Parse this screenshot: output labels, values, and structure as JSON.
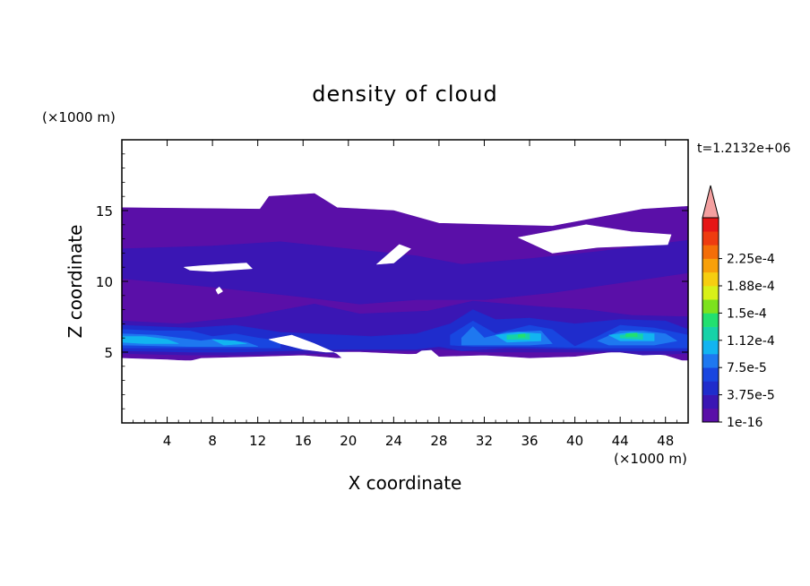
{
  "chart_data": {
    "type": "heatmap",
    "title": "density of cloud",
    "xlabel": "X coordinate",
    "ylabel": "Z coordinate",
    "x_unit": "(×1000 m)",
    "y_unit": "(×1000 m)",
    "time_label": "t=1.2132e+06",
    "xlim": [
      0,
      50
    ],
    "ylim": [
      0,
      20
    ],
    "x_ticks": [
      4,
      8,
      12,
      16,
      20,
      24,
      28,
      32,
      36,
      40,
      44,
      48
    ],
    "y_ticks": [
      5,
      10,
      15
    ],
    "colorbar": {
      "levels": [
        "1e-16",
        "3.75e-5",
        "7.5e-5",
        "1.12e-4",
        "1.5e-4",
        "1.88e-4",
        "2.25e-4"
      ],
      "colors": [
        "#5a0fa8",
        "#3a16b4",
        "#1f2ccc",
        "#1846e0",
        "#1e78f0",
        "#12b4f0",
        "#16d2a8",
        "#22e070",
        "#7ce21e",
        "#d8f018",
        "#f6ce10",
        "#f8a00a",
        "#f46e08",
        "#ee3c10",
        "#e61616"
      ],
      "extend_color": "#f4a0a0"
    },
    "regions": [
      {
        "level": 1,
        "polygon": [
          [
            0,
            15.2
          ],
          [
            12.2,
            15.1
          ],
          [
            13,
            16
          ],
          [
            17,
            16.2
          ],
          [
            19,
            15.2
          ],
          [
            24,
            15
          ],
          [
            28,
            14.1
          ],
          [
            38,
            13.9
          ],
          [
            42,
            14.5
          ],
          [
            46,
            15.1
          ],
          [
            50,
            15.3
          ],
          [
            50,
            4.3
          ],
          [
            48,
            4.8
          ],
          [
            44,
            5.1
          ],
          [
            40,
            4.7
          ],
          [
            36,
            4.6
          ],
          [
            32,
            4.8
          ],
          [
            28,
            4.7
          ],
          [
            27,
            5.4
          ],
          [
            26,
            4.9
          ],
          [
            19,
            4.6
          ],
          [
            16,
            4.8
          ],
          [
            12,
            4.7
          ],
          [
            7,
            4.6
          ],
          [
            6,
            4.4
          ],
          [
            4,
            4.5
          ],
          [
            0,
            4.6
          ]
        ]
      },
      {
        "level": 2,
        "polygon": [
          [
            0,
            12.3
          ],
          [
            8,
            12.5
          ],
          [
            14,
            12.8
          ],
          [
            20,
            12.3
          ],
          [
            26,
            11.8
          ],
          [
            30,
            11.2
          ],
          [
            36,
            11.6
          ],
          [
            42,
            12.1
          ],
          [
            50,
            12.9
          ],
          [
            50,
            10.6
          ],
          [
            44,
            9.9
          ],
          [
            38,
            9.2
          ],
          [
            32,
            8.7
          ],
          [
            26,
            8.7
          ],
          [
            21,
            8.4
          ],
          [
            16,
            8.9
          ],
          [
            8,
            9.6
          ],
          [
            0,
            10.2
          ]
        ]
      },
      {
        "level": 2,
        "polygon": [
          [
            0,
            7.2
          ],
          [
            5,
            7.0
          ],
          [
            11,
            7.5
          ],
          [
            17,
            8.4
          ],
          [
            21,
            7.7
          ],
          [
            27,
            7.9
          ],
          [
            31,
            8.6
          ],
          [
            37,
            8.2
          ],
          [
            41,
            8.0
          ],
          [
            45,
            7.6
          ],
          [
            50,
            7.5
          ],
          [
            50,
            4.9
          ],
          [
            46,
            4.8
          ],
          [
            44,
            5.0
          ],
          [
            40,
            5.0
          ],
          [
            32,
            5.0
          ],
          [
            28,
            5.2
          ],
          [
            26,
            5.1
          ],
          [
            20,
            5.1
          ],
          [
            19,
            4.9
          ],
          [
            17,
            4.9
          ],
          [
            10,
            4.8
          ],
          [
            6,
            4.8
          ],
          [
            0,
            4.9
          ]
        ]
      },
      {
        "level": 3,
        "polygon": [
          [
            0,
            6.9
          ],
          [
            6,
            6.7
          ],
          [
            10,
            6.9
          ],
          [
            14,
            6.4
          ],
          [
            22,
            6.1
          ],
          [
            26,
            6.3
          ],
          [
            29,
            7.0
          ],
          [
            31,
            8.0
          ],
          [
            33,
            7.3
          ],
          [
            36,
            7.4
          ],
          [
            40,
            7.0
          ],
          [
            44,
            7.3
          ],
          [
            48,
            7.2
          ],
          [
            50,
            6.6
          ],
          [
            50,
            5.1
          ],
          [
            44,
            5.1
          ],
          [
            40,
            5.2
          ],
          [
            34,
            5.3
          ],
          [
            30,
            5.1
          ],
          [
            28,
            5.4
          ],
          [
            26,
            5.2
          ],
          [
            20,
            5.2
          ],
          [
            10,
            5.0
          ],
          [
            6,
            5.0
          ],
          [
            0,
            5.1
          ]
        ]
      },
      {
        "level": 4,
        "polygon": [
          [
            0,
            6.6
          ],
          [
            3,
            6.5
          ],
          [
            6,
            6.5
          ],
          [
            8,
            6.1
          ],
          [
            10,
            6.3
          ],
          [
            12,
            6.0
          ],
          [
            14,
            5.8
          ],
          [
            14,
            5.3
          ],
          [
            6,
            5.3
          ],
          [
            0,
            5.3
          ]
        ]
      },
      {
        "level": 4,
        "polygon": [
          [
            29,
            6.2
          ],
          [
            31,
            7.2
          ],
          [
            33,
            6.3
          ],
          [
            36,
            6.9
          ],
          [
            38,
            6.6
          ],
          [
            40,
            5.4
          ],
          [
            42,
            6.1
          ],
          [
            44,
            6.9
          ],
          [
            47,
            6.7
          ],
          [
            50,
            6.2
          ],
          [
            50,
            5.3
          ],
          [
            42,
            5.3
          ],
          [
            36,
            5.4
          ],
          [
            31,
            5.4
          ],
          [
            29,
            5.5
          ]
        ]
      },
      {
        "level": 5,
        "polygon": [
          [
            0,
            6.3
          ],
          [
            3,
            6.2
          ],
          [
            5,
            6.0
          ],
          [
            7,
            5.8
          ],
          [
            8,
            5.9
          ],
          [
            11,
            5.7
          ],
          [
            12,
            5.4
          ],
          [
            6,
            5.4
          ],
          [
            0,
            5.5
          ]
        ]
      },
      {
        "level": 5,
        "polygon": [
          [
            30,
            6.0
          ],
          [
            31,
            6.8
          ],
          [
            32,
            6.0
          ],
          [
            34,
            6.4
          ],
          [
            37,
            6.5
          ],
          [
            38,
            5.6
          ],
          [
            36,
            5.5
          ],
          [
            30,
            5.5
          ]
        ]
      },
      {
        "level": 5,
        "polygon": [
          [
            42,
            5.8
          ],
          [
            44,
            6.5
          ],
          [
            46,
            6.5
          ],
          [
            48,
            6.3
          ],
          [
            49,
            5.8
          ],
          [
            47,
            5.5
          ],
          [
            43,
            5.5
          ]
        ]
      },
      {
        "level": 6,
        "polygon": [
          [
            0,
            6.1
          ],
          [
            2,
            6.1
          ],
          [
            4,
            5.9
          ],
          [
            5,
            5.6
          ],
          [
            2,
            5.6
          ],
          [
            0,
            5.7
          ]
        ]
      },
      {
        "level": 6,
        "polygon": [
          [
            8,
            5.9
          ],
          [
            10,
            5.8
          ],
          [
            11,
            5.6
          ],
          [
            9,
            5.5
          ]
        ]
      },
      {
        "level": 6,
        "polygon": [
          [
            33,
            6.2
          ],
          [
            35,
            6.4
          ],
          [
            37,
            6.3
          ],
          [
            37,
            5.8
          ],
          [
            34,
            5.7
          ]
        ]
      },
      {
        "level": 6,
        "polygon": [
          [
            43,
            6.2
          ],
          [
            45,
            6.4
          ],
          [
            47,
            6.3
          ],
          [
            47,
            5.8
          ],
          [
            44,
            5.8
          ]
        ]
      },
      {
        "level": 7,
        "polygon": [
          [
            34,
            6.2
          ],
          [
            36,
            6.3
          ],
          [
            36,
            5.9
          ],
          [
            34,
            5.9
          ]
        ]
      },
      {
        "level": 7,
        "polygon": [
          [
            44,
            6.2
          ],
          [
            46,
            6.3
          ],
          [
            46,
            5.9
          ],
          [
            44,
            6.0
          ]
        ]
      },
      {
        "level": 8,
        "polygon": [
          [
            35,
            6.25
          ],
          [
            35.6,
            6.3
          ],
          [
            35.6,
            6.05
          ],
          [
            35,
            6.05
          ]
        ]
      },
      {
        "level": 8,
        "polygon": [
          [
            44.5,
            6.3
          ],
          [
            45.5,
            6.35
          ],
          [
            45.5,
            6.1
          ],
          [
            44.5,
            6.1
          ]
        ]
      },
      {
        "level": 0,
        "polygon": [
          [
            0,
            4.4
          ],
          [
            50,
            4.4
          ],
          [
            50,
            0
          ],
          [
            0,
            0
          ]
        ]
      },
      {
        "level": 0,
        "polygon": [
          [
            13,
            5.9
          ],
          [
            15,
            6.2
          ],
          [
            17,
            5.6
          ],
          [
            19,
            4.9
          ],
          [
            20,
            4.2
          ],
          [
            26,
            4.0
          ],
          [
            26.5,
            4.8
          ],
          [
            21,
            5.0
          ],
          [
            18,
            5.0
          ],
          [
            16,
            5.2
          ],
          [
            14,
            5.6
          ]
        ]
      },
      {
        "level": 0,
        "polygon": [
          [
            35,
            13.1
          ],
          [
            41,
            14.0
          ],
          [
            45,
            13.5
          ],
          [
            48.5,
            13.3
          ],
          [
            48.2,
            12.6
          ],
          [
            42,
            12.4
          ],
          [
            38,
            12.0
          ]
        ]
      },
      {
        "level": 0,
        "polygon": [
          [
            5.5,
            11.0
          ],
          [
            7,
            11.1
          ],
          [
            11,
            11.3
          ],
          [
            11.5,
            10.9
          ],
          [
            8,
            10.7
          ],
          [
            6,
            10.8
          ]
        ]
      },
      {
        "level": 0,
        "polygon": [
          [
            22.5,
            11.2
          ],
          [
            24.5,
            12.6
          ],
          [
            25.5,
            12.3
          ],
          [
            24,
            11.3
          ]
        ]
      },
      {
        "level": 0,
        "polygon": [
          [
            8.3,
            9.4
          ],
          [
            8.6,
            9.6
          ],
          [
            8.9,
            9.3
          ],
          [
            8.5,
            9.1
          ]
        ]
      }
    ]
  }
}
